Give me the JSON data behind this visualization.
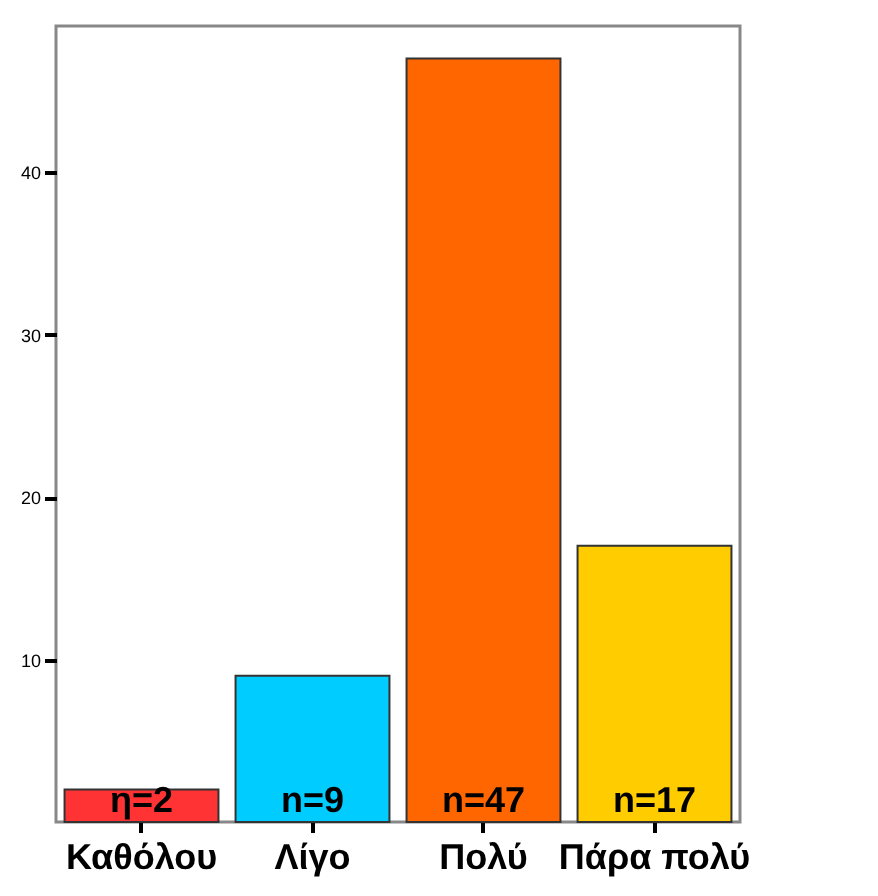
{
  "chart_data": {
    "type": "bar",
    "categories": [
      "Καθόλου",
      "Λίγο",
      "Πολύ",
      "Πάρα πολύ"
    ],
    "values": [
      2,
      9,
      47,
      17
    ],
    "colors": [
      "#ff3333",
      "#00ccff",
      "#ff6600",
      "#ffcc00"
    ],
    "value_labels": [
      "η=2",
      "n=9",
      "n=47",
      "n=17"
    ],
    "ylim": [
      0,
      49
    ],
    "yticks": [
      10,
      20,
      30,
      40
    ],
    "grid": false,
    "legend": false
  }
}
